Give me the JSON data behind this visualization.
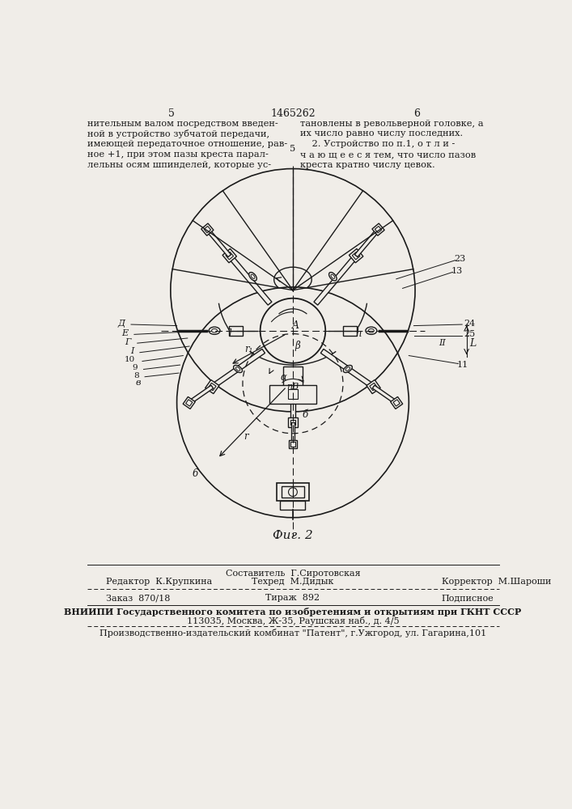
{
  "page_numbers": [
    "5",
    "6"
  ],
  "patent_number": "1465262",
  "text_left": [
    "нительным валом посредством введен-",
    "ной в устройство зубчатой передачи,",
    "имеющей передаточное отношение, рав-",
    "ное +1, при этом пазы креста парал-",
    "лельны осям шпинделей, которые ус-"
  ],
  "text_right": [
    "тановлены в револьверной головке, а",
    "их число равно числу последних.",
    "    2. Устройство по п.1, о т л и -",
    "ч а ю щ е е с я тем, что число пазов",
    "креста кратно числу цевок."
  ],
  "line_number_mid": "5",
  "fig_caption": "Фиг. 2",
  "credits_row1_center": "Составитель  Г.Сиротовская",
  "credits_row2_left": "Редактор  К.Крупкина",
  "credits_row2_center": "Техред  М.Дидык",
  "credits_row2_right": "Корректор  М.Шароши",
  "order_left": "Заказ  870/18",
  "order_center": "Тираж  892",
  "order_right": "Подписное",
  "vniipi_line1": "ВНИИПИ Государственного комитета по изобретениям и открытиям при ГКНТ СССР",
  "vniipi_line2": "113035, Москва, Ж-35, Раушская наб., д. 4/5",
  "patent_line": "Производственно-издательский комбинат \"Патент\", г.Ужгород, ул. Гагарина,101",
  "bg_color": "#f0ede8",
  "line_color": "#1a1a1a",
  "text_color": "#1a1a1a"
}
